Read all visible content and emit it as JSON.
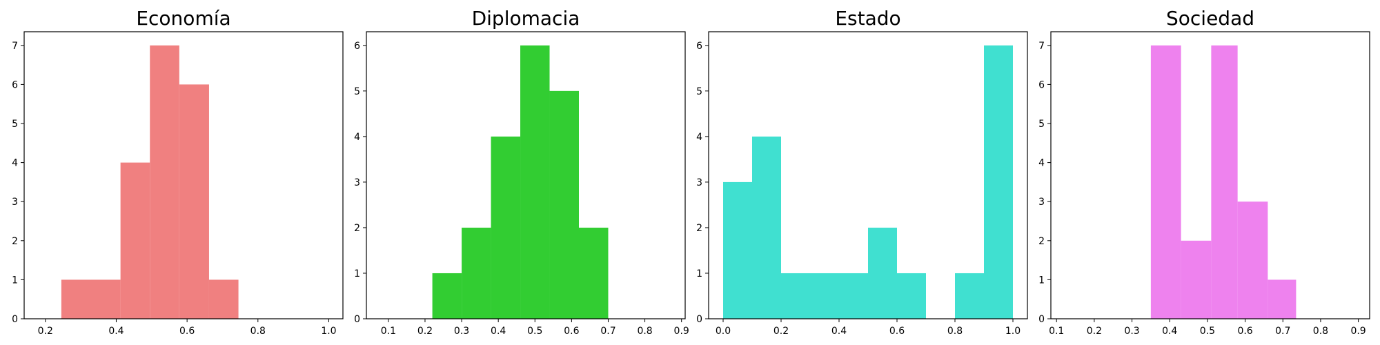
{
  "chart_data": [
    {
      "type": "histogram",
      "title": "Economía",
      "color": "#F08080",
      "xlim": [
        0.14,
        1.04
      ],
      "ylim": [
        0,
        7.35
      ],
      "xticks": [
        0.2,
        0.4,
        0.6,
        0.8,
        1.0
      ],
      "xtick_labels": [
        "0.2",
        "0.4",
        "0.6",
        "0.8",
        "1.0"
      ],
      "yticks": [
        0,
        1,
        2,
        3,
        4,
        5,
        6,
        7
      ],
      "ytick_labels": [
        "0",
        "1",
        "2",
        "3",
        "4",
        "5",
        "6",
        "7"
      ],
      "bins": [
        {
          "x0": 0.245,
          "x1": 0.328,
          "count": 1
        },
        {
          "x0": 0.328,
          "x1": 0.412,
          "count": 1
        },
        {
          "x0": 0.412,
          "x1": 0.495,
          "count": 4
        },
        {
          "x0": 0.495,
          "x1": 0.578,
          "count": 7
        },
        {
          "x0": 0.578,
          "x1": 0.662,
          "count": 6
        },
        {
          "x0": 0.662,
          "x1": 0.745,
          "count": 1
        }
      ]
    },
    {
      "type": "histogram",
      "title": "Diplomacia",
      "color": "#32CD32",
      "xlim": [
        0.04,
        0.91
      ],
      "ylim": [
        0,
        6.3
      ],
      "xticks": [
        0.1,
        0.2,
        0.3,
        0.4,
        0.5,
        0.6,
        0.7,
        0.8,
        0.9
      ],
      "xtick_labels": [
        "0.1",
        "0.2",
        "0.3",
        "0.4",
        "0.5",
        "0.6",
        "0.7",
        "0.8",
        "0.9"
      ],
      "yticks": [
        0,
        1,
        2,
        3,
        4,
        5,
        6
      ],
      "ytick_labels": [
        "0",
        "1",
        "2",
        "3",
        "4",
        "5",
        "6"
      ],
      "bins": [
        {
          "x0": 0.22,
          "x1": 0.3,
          "count": 1
        },
        {
          "x0": 0.3,
          "x1": 0.38,
          "count": 2
        },
        {
          "x0": 0.38,
          "x1": 0.46,
          "count": 4
        },
        {
          "x0": 0.46,
          "x1": 0.54,
          "count": 6
        },
        {
          "x0": 0.54,
          "x1": 0.62,
          "count": 5
        },
        {
          "x0": 0.62,
          "x1": 0.7,
          "count": 2
        }
      ]
    },
    {
      "type": "histogram",
      "title": "Estado",
      "color": "#40E0D0",
      "xlim": [
        -0.05,
        1.05
      ],
      "ylim": [
        0,
        6.3
      ],
      "xticks": [
        0.0,
        0.2,
        0.4,
        0.6,
        0.8,
        1.0
      ],
      "xtick_labels": [
        "0.0",
        "0.2",
        "0.4",
        "0.6",
        "0.8",
        "1.0"
      ],
      "yticks": [
        0,
        1,
        2,
        3,
        4,
        5,
        6
      ],
      "ytick_labels": [
        "0",
        "1",
        "2",
        "3",
        "4",
        "5",
        "6"
      ],
      "bins": [
        {
          "x0": 0.0,
          "x1": 0.1,
          "count": 3
        },
        {
          "x0": 0.1,
          "x1": 0.2,
          "count": 4
        },
        {
          "x0": 0.2,
          "x1": 0.3,
          "count": 1
        },
        {
          "x0": 0.3,
          "x1": 0.4,
          "count": 1
        },
        {
          "x0": 0.4,
          "x1": 0.5,
          "count": 1
        },
        {
          "x0": 0.5,
          "x1": 0.6,
          "count": 2
        },
        {
          "x0": 0.6,
          "x1": 0.7,
          "count": 1
        },
        {
          "x0": 0.7,
          "x1": 0.8,
          "count": 0
        },
        {
          "x0": 0.8,
          "x1": 0.9,
          "count": 1
        },
        {
          "x0": 0.9,
          "x1": 1.0,
          "count": 6
        }
      ]
    },
    {
      "type": "histogram",
      "title": "Sociedad",
      "color": "#EE82EE",
      "xlim": [
        0.085,
        0.93
      ],
      "ylim": [
        0,
        7.35
      ],
      "xticks": [
        0.1,
        0.2,
        0.3,
        0.4,
        0.5,
        0.6,
        0.7,
        0.8,
        0.9
      ],
      "xtick_labels": [
        "0.1",
        "0.2",
        "0.3",
        "0.4",
        "0.5",
        "0.6",
        "0.7",
        "0.8",
        "0.9"
      ],
      "yticks": [
        0,
        1,
        2,
        3,
        4,
        5,
        6,
        7
      ],
      "ytick_labels": [
        "0",
        "1",
        "2",
        "3",
        "4",
        "5",
        "6",
        "7"
      ],
      "bins": [
        {
          "x0": 0.35,
          "x1": 0.43,
          "count": 7
        },
        {
          "x0": 0.43,
          "x1": 0.51,
          "count": 2
        },
        {
          "x0": 0.51,
          "x1": 0.58,
          "count": 7
        },
        {
          "x0": 0.58,
          "x1": 0.66,
          "count": 3
        },
        {
          "x0": 0.66,
          "x1": 0.735,
          "count": 1
        }
      ]
    }
  ]
}
